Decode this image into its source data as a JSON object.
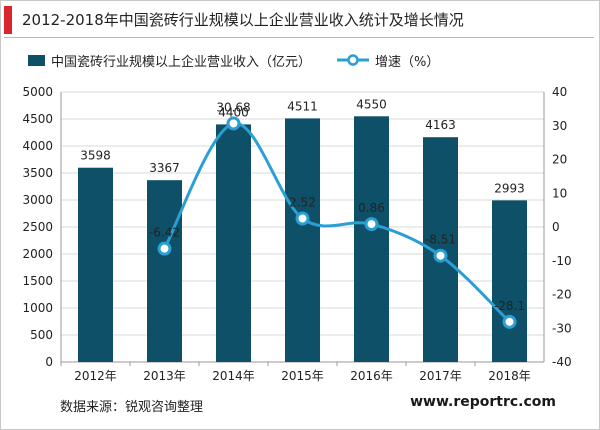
{
  "title": "2012-2018年中国瓷砖行业规模以上企业营业收入统计及增长情况",
  "source": "数据来源：锐观咨询整理",
  "website": "www.reportrc.com",
  "colors": {
    "bar": "#0e5068",
    "line": "#2a9fd4",
    "accent": "#d9262c"
  },
  "chart_data": {
    "type": "bar",
    "categories": [
      "2012年",
      "2013年",
      "2014年",
      "2015年",
      "2016年",
      "2017年",
      "2018年"
    ],
    "series": [
      {
        "name": "中国瓷砖行业规模以上企业营业收入（亿元）",
        "type": "bar",
        "axis": "left",
        "values": [
          3598,
          3367,
          4400,
          4511,
          4550,
          4163,
          2993
        ]
      },
      {
        "name": "增速（%）",
        "type": "line",
        "axis": "right",
        "values": [
          null,
          -6.42,
          30.68,
          2.52,
          0.86,
          -8.51,
          -28.1
        ]
      }
    ],
    "bar_labels": [
      "3598",
      "3367",
      "4400",
      "4511",
      "4550",
      "4163",
      "2993"
    ],
    "line_labels": [
      "",
      "-6.42",
      "30.68",
      "2.52",
      "0.86",
      "-8.51",
      "-28.1"
    ],
    "y_left": {
      "min": 0,
      "max": 5000,
      "step": 500,
      "ticks": [
        "0",
        "500",
        "1000",
        "1500",
        "2000",
        "2500",
        "3000",
        "3500",
        "4000",
        "4500",
        "5000"
      ]
    },
    "y_right": {
      "min": -40,
      "max": 40,
      "step": 10,
      "ticks": [
        "-40",
        "-30",
        "-20",
        "-10",
        "0",
        "10",
        "20",
        "30",
        "40"
      ]
    },
    "grid": true,
    "legend_position": "top-left"
  }
}
